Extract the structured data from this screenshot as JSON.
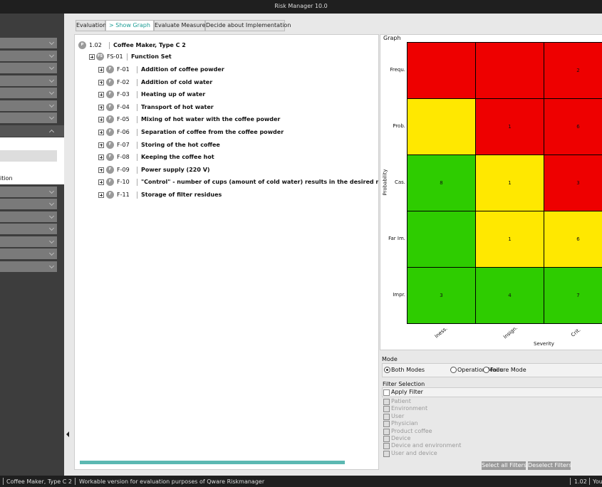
{
  "title_bar": {
    "title": "Risk Manager  10.0"
  },
  "sidebar": {
    "fragment": "ition"
  },
  "tabs": [
    "Evaluation",
    "> Show Graph",
    "Evaluate Measures",
    "Decide about Implementation"
  ],
  "tree": {
    "root": {
      "icon": "P",
      "id": "1.02",
      "label": "Coffee Maker, Type C 2"
    },
    "set": {
      "icon": "FS",
      "id": "FS-01",
      "label": "Function Set"
    },
    "functions": [
      {
        "icon": "F",
        "id": "F-01",
        "label": "Addition of coffee powder"
      },
      {
        "icon": "F",
        "id": "F-02",
        "label": "Addition of cold water"
      },
      {
        "icon": "F",
        "id": "F-03",
        "label": "Heating up of water"
      },
      {
        "icon": "F",
        "id": "F-04",
        "label": "Transport of hot water"
      },
      {
        "icon": "F",
        "id": "F-05",
        "label": "Mixing of hot water with the coffee powder"
      },
      {
        "icon": "F",
        "id": "F-06",
        "label": "Separation of coffee from the coffee powder"
      },
      {
        "icon": "F",
        "id": "F-07",
        "label": "Storing of the hot coffee"
      },
      {
        "icon": "F",
        "id": "F-08",
        "label": "Keeping the coffee hot"
      },
      {
        "icon": "F",
        "id": "F-09",
        "label": "Power supply (220 V)"
      },
      {
        "icon": "F",
        "id": "F-10",
        "label": "\"Control\" - number of cups (amount of cold water) results in the desired number of cups of coffee"
      },
      {
        "icon": "F",
        "id": "F-11",
        "label": "Storage of filter residues"
      }
    ]
  },
  "graph": {
    "title": "Graph",
    "y_axis_label": "Probability",
    "x_axis_label": "Severity",
    "rows": [
      "Frequ.",
      "Prob.",
      "Cas.",
      "Far Im.",
      "Impr."
    ],
    "columns": [
      "Iness.",
      "Insign.",
      "Crit."
    ],
    "cells": [
      [
        {
          "color": "#ee0000",
          "count": null
        },
        {
          "color": "#ee0000",
          "count": null
        },
        {
          "color": "#ee0000",
          "count": 2
        }
      ],
      [
        {
          "color": "#ffe800",
          "count": null
        },
        {
          "color": "#ee0000",
          "count": 1
        },
        {
          "color": "#ee0000",
          "count": 6
        }
      ],
      [
        {
          "color": "#2ecc00",
          "count": 8
        },
        {
          "color": "#ffe800",
          "count": 1
        },
        {
          "color": "#ee0000",
          "count": 3
        }
      ],
      [
        {
          "color": "#2ecc00",
          "count": null
        },
        {
          "color": "#ffe800",
          "count": 1
        },
        {
          "color": "#ffe800",
          "count": 6
        }
      ],
      [
        {
          "color": "#2ecc00",
          "count": 3
        },
        {
          "color": "#2ecc00",
          "count": 4
        },
        {
          "color": "#2ecc00",
          "count": 7
        }
      ]
    ]
  },
  "mode": {
    "title": "Mode",
    "options": [
      "Both Modes",
      "Operation Mode",
      "Failure Mode"
    ],
    "selected": 0
  },
  "filter": {
    "title": "Filter Selection",
    "apply": "Apply Filter",
    "items": [
      "Patient",
      "Environment",
      "User",
      "Physician",
      "Product coffee",
      "Device",
      "Device and environment",
      "User and device"
    ],
    "buttons": [
      "Select all Filters",
      "Deselect Filters"
    ]
  },
  "status_bar": {
    "project": "Coffee Maker, Type C 2",
    "note": "Workable version for evaluation purposes of Qware Riskmanager",
    "version": "1.02",
    "user": "You"
  }
}
